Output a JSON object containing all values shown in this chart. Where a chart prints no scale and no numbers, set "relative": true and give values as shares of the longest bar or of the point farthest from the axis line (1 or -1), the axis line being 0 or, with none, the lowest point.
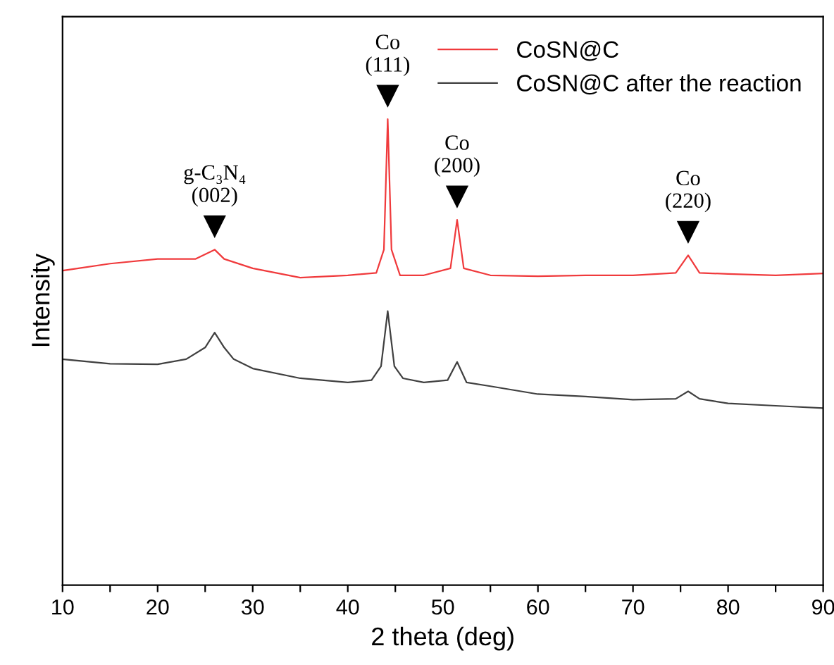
{
  "chart_data": {
    "type": "line",
    "relative": true,
    "xlabel": "2 theta (deg)",
    "ylabel": "Intensity",
    "xlim": [
      10,
      90
    ],
    "xticks": [
      10,
      {
        "value": 15,
        "label": null
      },
      20,
      {
        "value": 25,
        "label": null
      },
      30,
      {
        "value": 35,
        "label": null
      },
      40,
      {
        "value": 45,
        "label": null
      },
      50,
      {
        "value": 55,
        "label": null
      },
      60,
      {
        "value": 65,
        "label": null
      },
      70,
      {
        "value": 75,
        "label": null
      },
      80,
      {
        "value": 85,
        "label": null
      },
      90
    ],
    "legend": "top right",
    "grid": false,
    "marker": "none",
    "line_style": "solid",
    "series": [
      {
        "name": "CoSN@C",
        "color": "#f03a3c",
        "x": [
          10,
          15,
          20,
          24,
          26,
          27,
          30,
          35,
          40,
          43,
          43.8,
          44.2,
          44.6,
          45.5,
          48,
          50.8,
          51.5,
          52.2,
          55,
          60,
          65,
          70,
          74.5,
          75.8,
          77,
          80,
          85,
          90
        ],
        "values": [
          0.675,
          0.69,
          0.7,
          0.7,
          0.72,
          0.7,
          0.68,
          0.66,
          0.665,
          0.67,
          0.72,
          1.0,
          0.72,
          0.665,
          0.665,
          0.68,
          0.784,
          0.68,
          0.665,
          0.663,
          0.665,
          0.665,
          0.67,
          0.708,
          0.67,
          0.668,
          0.665,
          0.669
        ]
      },
      {
        "name": "CoSN@C after the reaction",
        "color": "#404040",
        "x": [
          10,
          15,
          20,
          23,
          25,
          26,
          27,
          28,
          30,
          35,
          40,
          42.5,
          43.5,
          44.2,
          44.9,
          45.8,
          48,
          50.5,
          51.5,
          52.5,
          55,
          60,
          65,
          70,
          74.5,
          75.8,
          77,
          80,
          85,
          90
        ],
        "values": [
          0.485,
          0.475,
          0.474,
          0.485,
          0.51,
          0.542,
          0.51,
          0.485,
          0.465,
          0.444,
          0.435,
          0.44,
          0.47,
          0.588,
          0.47,
          0.444,
          0.435,
          0.44,
          0.479,
          0.435,
          0.427,
          0.41,
          0.405,
          0.398,
          0.4,
          0.416,
          0.4,
          0.39,
          0.385,
          0.38
        ]
      }
    ],
    "annotations": [
      {
        "text": "g-C₃N₄\n(002)",
        "x": 26,
        "y": 0.72
      },
      {
        "text": "Co\n(111)",
        "x": 44.2,
        "y": 1.0
      },
      {
        "text": "Co\n(200)",
        "x": 51.5,
        "y": 0.784
      },
      {
        "text": "Co\n(220)",
        "x": 75.8,
        "y": 0.708
      }
    ]
  }
}
